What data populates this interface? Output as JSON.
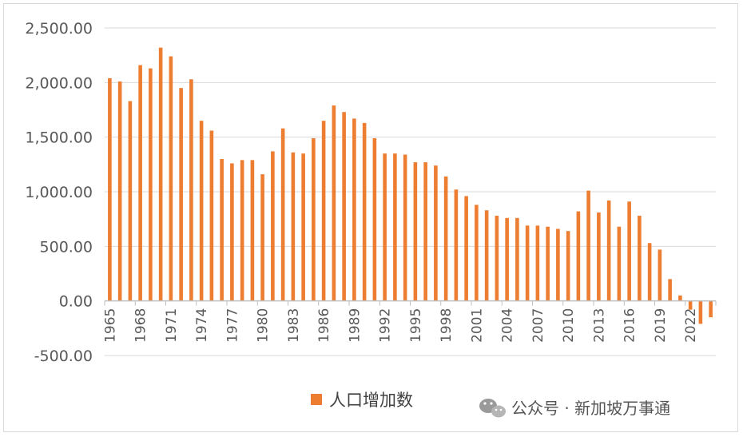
{
  "chart_data": {
    "type": "bar",
    "categories": [
      "1965",
      "1966",
      "1967",
      "1968",
      "1969",
      "1970",
      "1971",
      "1972",
      "1973",
      "1974",
      "1975",
      "1976",
      "1977",
      "1978",
      "1979",
      "1980",
      "1981",
      "1982",
      "1983",
      "1984",
      "1985",
      "1986",
      "1987",
      "1988",
      "1989",
      "1990",
      "1991",
      "1992",
      "1993",
      "1994",
      "1995",
      "1996",
      "1997",
      "1998",
      "1999",
      "2000",
      "2001",
      "2002",
      "2003",
      "2004",
      "2005",
      "2006",
      "2007",
      "2008",
      "2009",
      "2010",
      "2011",
      "2012",
      "2013",
      "2014",
      "2015",
      "2016",
      "2017",
      "2018",
      "2019",
      "2020",
      "2021",
      "2022",
      "2023",
      "2024"
    ],
    "series": [
      {
        "name": "人口增加数",
        "color": "#ed7d31",
        "values": [
          2040,
          2010,
          1830,
          2160,
          2130,
          2320,
          2240,
          1950,
          2030,
          1650,
          1560,
          1300,
          1260,
          1290,
          1290,
          1160,
          1370,
          1580,
          1360,
          1350,
          1490,
          1650,
          1790,
          1730,
          1670,
          1630,
          1490,
          1350,
          1350,
          1340,
          1270,
          1270,
          1240,
          1140,
          1020,
          960,
          880,
          830,
          780,
          760,
          760,
          690,
          690,
          680,
          660,
          640,
          820,
          1010,
          810,
          920,
          680,
          910,
          780,
          530,
          470,
          200,
          50,
          -80,
          -210,
          -150
        ]
      }
    ],
    "x_tick_labels": [
      "1965",
      "1968",
      "1971",
      "1974",
      "1977",
      "1980",
      "1983",
      "1986",
      "1989",
      "1992",
      "1995",
      "1998",
      "2001",
      "2004",
      "2007",
      "2010",
      "2013",
      "2016",
      "2019",
      "2022"
    ],
    "y_tick_labels": [
      "-500.00",
      "0.00",
      "500.00",
      "1,000.00",
      "1,500.00",
      "2,000.00",
      "2,500.00"
    ],
    "ylim": [
      -500,
      2500
    ],
    "y_step": 500,
    "grid": true,
    "legend_position": "bottom-center"
  },
  "watermark": {
    "text": "公众号 · 新加坡万事通",
    "icon": "wechat-icon"
  }
}
